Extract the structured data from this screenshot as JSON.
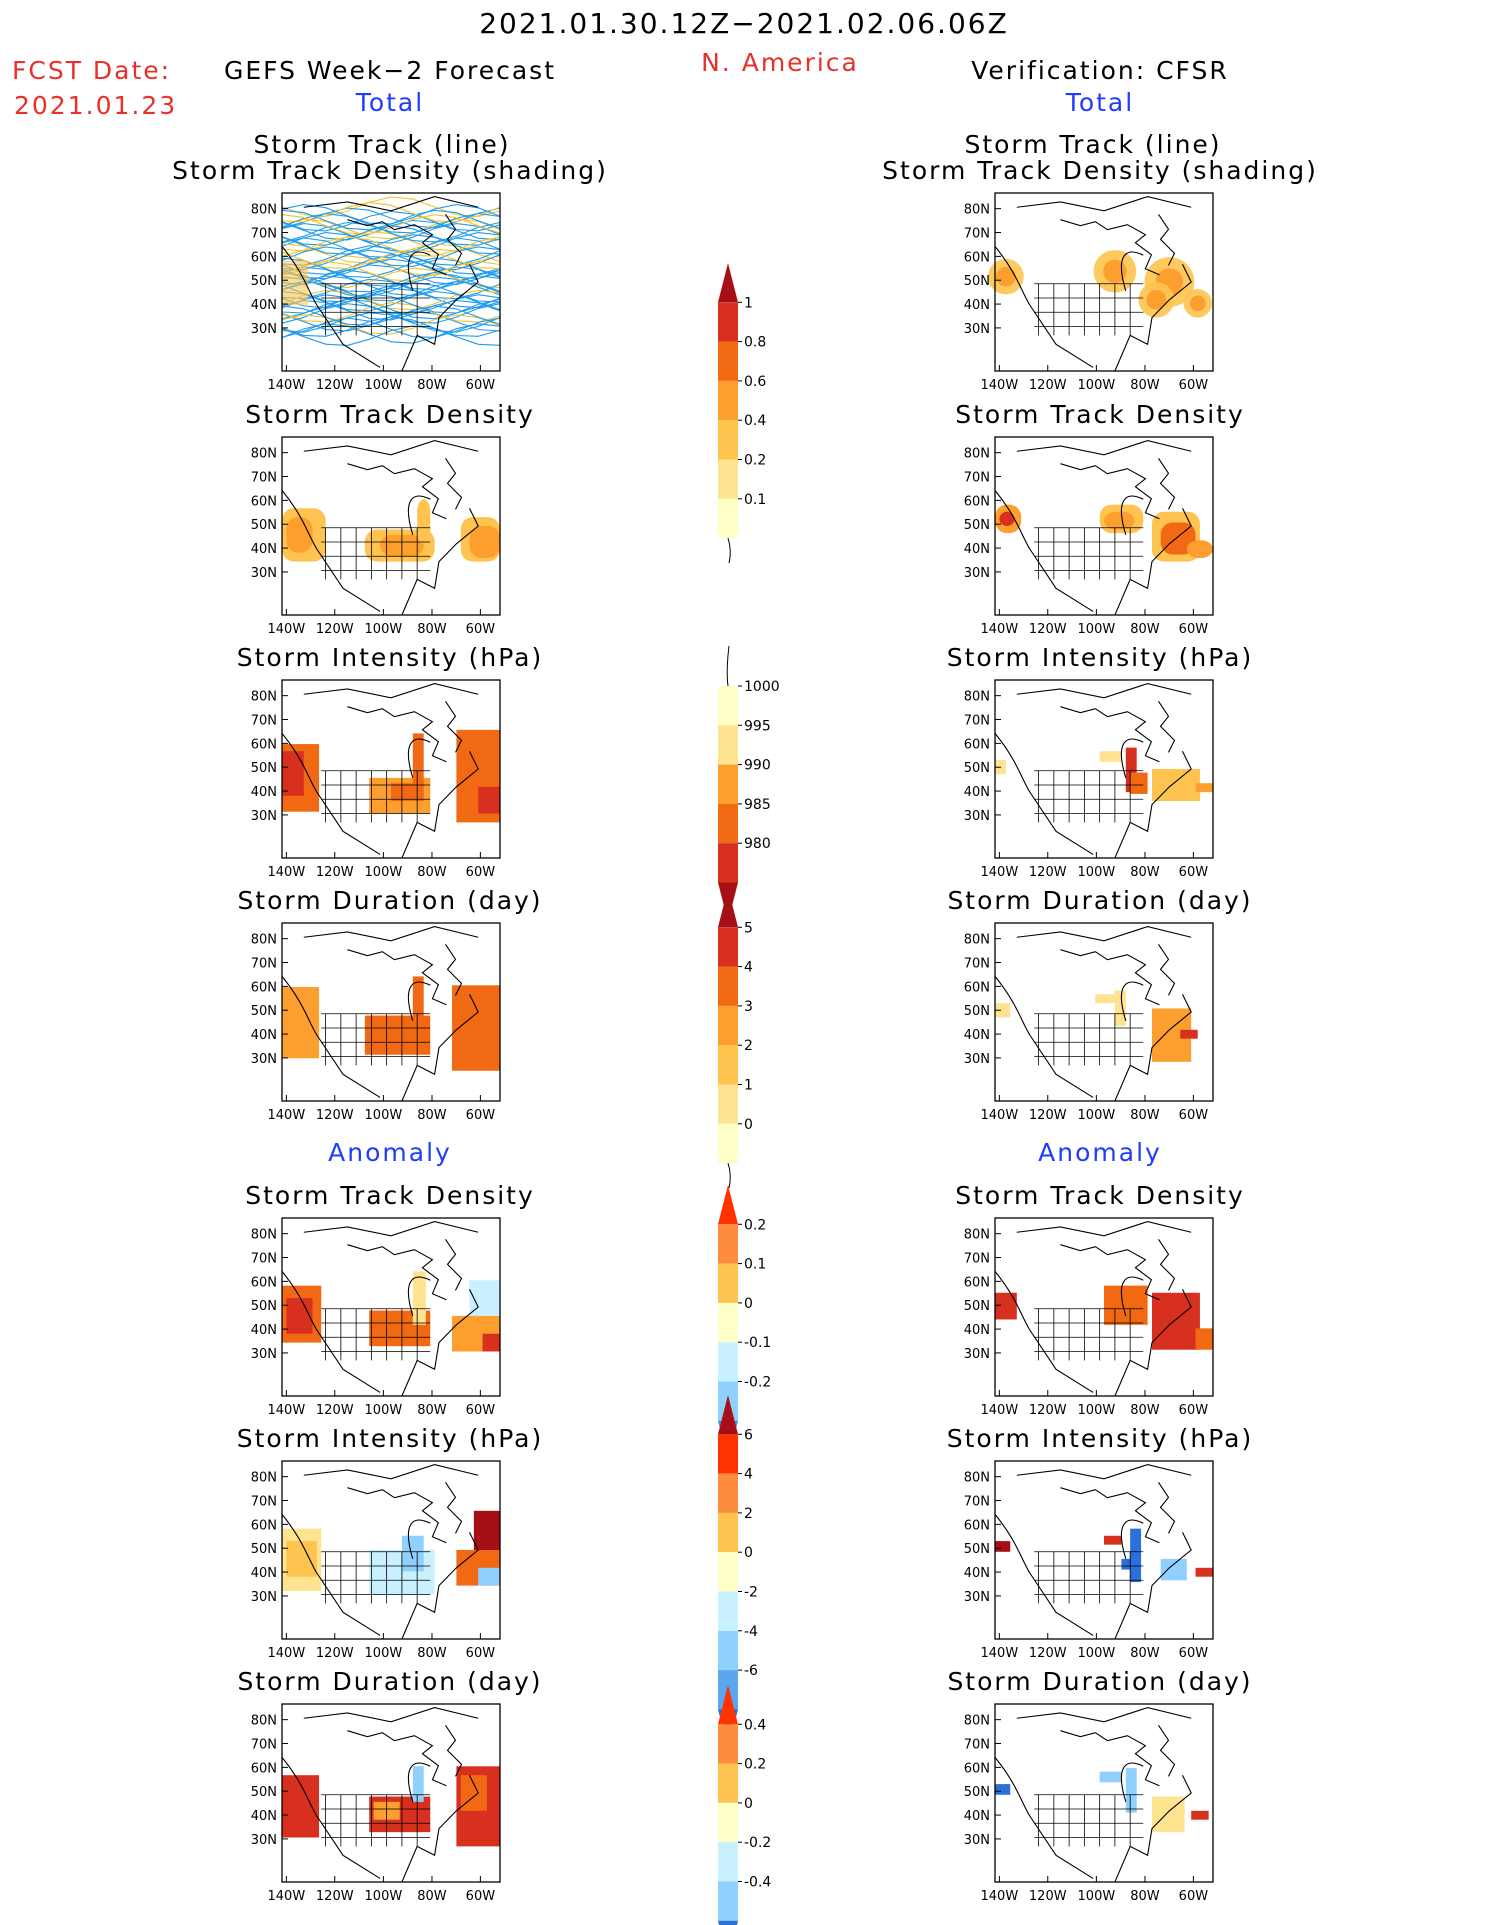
{
  "header": {
    "date_range": "2021.01.30.12Z−2021.02.06.06Z",
    "region": "N. America",
    "fcst_label": "FCST Date:",
    "fcst_date": "2021.01.23",
    "left_title": "GEFS Week−2 Forecast",
    "right_title": "Verification: CFSR",
    "total_label": "Total",
    "anomaly_label": "Anomaly"
  },
  "map_axes": {
    "lat_ticks": [
      "80N",
      "70N",
      "60N",
      "50N",
      "40N",
      "30N"
    ],
    "lon_ticks": [
      "140W",
      "120W",
      "100W",
      "80W",
      "60W"
    ]
  },
  "panel_titles": {
    "track_line": "Storm Track (line)",
    "track_shading": "Storm Track Density (shading)",
    "track_density": "Storm Track Density",
    "intensity": "Storm Intensity (hPa)",
    "duration": "Storm Duration (day)"
  },
  "chart_data": [
    {
      "type": "heatmap",
      "id": "total-density-colorbar",
      "labels": [
        "1",
        "0.8",
        "0.6",
        "0.4",
        "0.2",
        "0.1"
      ],
      "colors": [
        "#a50f15",
        "#d7301f",
        "#f16913",
        "#fd9f2e",
        "#fec44f",
        "#fee391",
        "#ffffc8"
      ]
    },
    {
      "type": "heatmap",
      "id": "total-intensity-colorbar",
      "labels": [
        "1000",
        "995",
        "990",
        "985",
        "980"
      ],
      "colors": [
        "#ffffc8",
        "#fee391",
        "#fd9f2e",
        "#f16913",
        "#d7301f",
        "#a50f15"
      ]
    },
    {
      "type": "heatmap",
      "id": "total-duration-colorbar",
      "labels": [
        "5",
        "4",
        "3",
        "2",
        "1",
        "0"
      ],
      "colors": [
        "#a50f15",
        "#d7301f",
        "#f16913",
        "#fd9f2e",
        "#fec44f",
        "#fee391",
        "#ffffc8"
      ]
    },
    {
      "type": "heatmap",
      "id": "anom-density-colorbar",
      "labels": [
        "0.2",
        "0.1",
        "0",
        "-0.1",
        "-0.2"
      ],
      "colors": [
        "#ff3300",
        "#fd8d3c",
        "#fec44f",
        "#ffffc8",
        "#c8f0ff",
        "#90d0ff",
        "#3a8ee6"
      ]
    },
    {
      "type": "heatmap",
      "id": "anom-intensity-colorbar",
      "labels": [
        "6",
        "4",
        "2",
        "0",
        "-2",
        "-4",
        "-6"
      ],
      "colors": [
        "#a50f15",
        "#ff3300",
        "#fd8d3c",
        "#fec44f",
        "#ffffc8",
        "#c8f0ff",
        "#90d0ff",
        "#5aa6f0",
        "#2a70d8"
      ]
    },
    {
      "type": "heatmap",
      "id": "anom-duration-colorbar",
      "labels": [
        "0.4",
        "0.2",
        "0",
        "-0.2",
        "-0.4"
      ],
      "colors": [
        "#ff3300",
        "#fd8d3c",
        "#fec44f",
        "#ffffc8",
        "#c8f0ff",
        "#90d0ff",
        "#2a70d8"
      ]
    }
  ]
}
